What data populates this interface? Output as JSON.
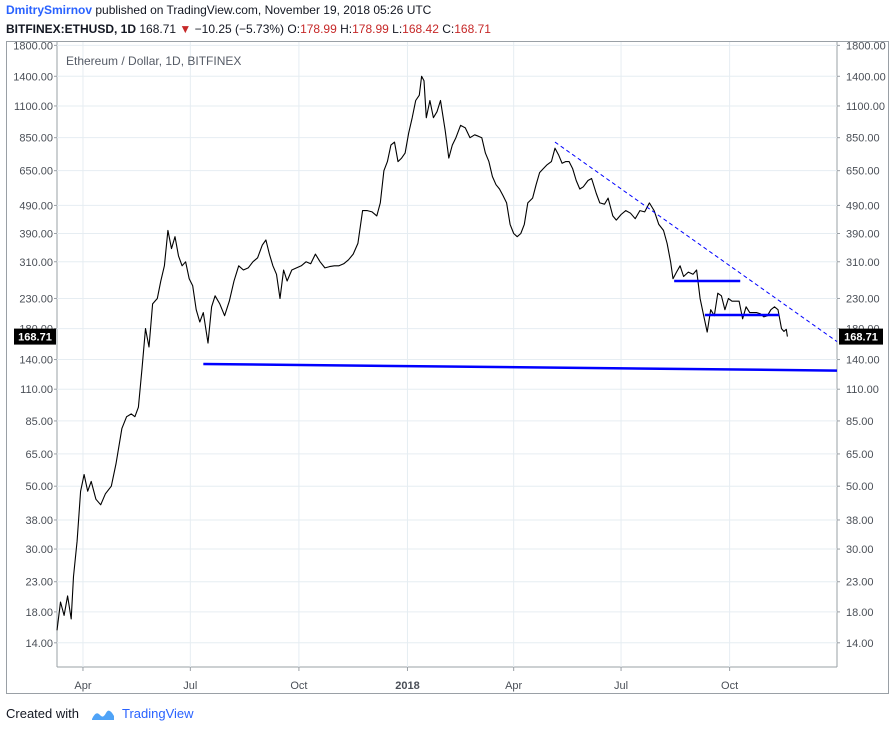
{
  "header": {
    "author": "DmitrySmirnov",
    "published_text": "published on TradingView.com, November 19, 2018 05:26 UTC",
    "symbol": "BITFINEX:ETHUSD, 1D",
    "last": "168.71",
    "change": "−10.25 (−5.73%)",
    "o_label": "O:",
    "o_value": "178.99",
    "h_label": "H:",
    "h_value": "178.99",
    "l_label": "L:",
    "l_value": "168.42",
    "c_label": "C:",
    "c_value": "168.71"
  },
  "footer": {
    "created_with": "Created with",
    "brand": "TradingView"
  },
  "colors": {
    "price_line": "#000000",
    "support_line": "#0000ff",
    "trend_line": "#0000ff",
    "price_tag_bg": "#000000",
    "grid": "#e6edf2"
  },
  "chart_data": {
    "type": "line",
    "title": "Ethereum / Dollar, 1D, BITFINEX",
    "y_scale": "log",
    "y_ticks": [
      14,
      18,
      23,
      30,
      38,
      50,
      65,
      85,
      110,
      140,
      180,
      230,
      310,
      390,
      490,
      650,
      850,
      1100,
      1400,
      1800
    ],
    "y_tick_labels": [
      "14.00",
      "18.00",
      "23.00",
      "30.00",
      "38.00",
      "50.00",
      "65.00",
      "85.00",
      "110.00",
      "140.00",
      "180.00",
      "230.00",
      "310.00",
      "390.00",
      "490.00",
      "650.00",
      "850.00",
      "1100.00",
      "1400.00",
      "1800.00"
    ],
    "ylim": [
      11.5,
      1850
    ],
    "x_range": [
      "2017-03-10",
      "2018-12-31"
    ],
    "x_ticks": [
      {
        "date": "2017-04-01",
        "label": "Apr",
        "bold": false
      },
      {
        "date": "2017-07-01",
        "label": "Jul",
        "bold": false
      },
      {
        "date": "2017-10-01",
        "label": "Oct",
        "bold": false
      },
      {
        "date": "2018-01-01",
        "label": "2018",
        "bold": true
      },
      {
        "date": "2018-04-01",
        "label": "Apr",
        "bold": false
      },
      {
        "date": "2018-07-01",
        "label": "Jul",
        "bold": false
      },
      {
        "date": "2018-10-01",
        "label": "Oct",
        "bold": false
      }
    ],
    "last_price": 168.71,
    "last_price_label": "168.71",
    "series": [
      {
        "values": [
          [
            "2017-03-10",
            15.5
          ],
          [
            "2017-03-13",
            19.5
          ],
          [
            "2017-03-16",
            17.5
          ],
          [
            "2017-03-19",
            20.5
          ],
          [
            "2017-03-22",
            17
          ],
          [
            "2017-03-24",
            24
          ],
          [
            "2017-03-27",
            32
          ],
          [
            "2017-03-30",
            48
          ],
          [
            "2017-04-02",
            55
          ],
          [
            "2017-04-05",
            48
          ],
          [
            "2017-04-08",
            52
          ],
          [
            "2017-04-12",
            45
          ],
          [
            "2017-04-16",
            43
          ],
          [
            "2017-04-20",
            47
          ],
          [
            "2017-04-25",
            50
          ],
          [
            "2017-04-29",
            60
          ],
          [
            "2017-05-04",
            80
          ],
          [
            "2017-05-08",
            88
          ],
          [
            "2017-05-12",
            90
          ],
          [
            "2017-05-15",
            88
          ],
          [
            "2017-05-18",
            95
          ],
          [
            "2017-05-21",
            130
          ],
          [
            "2017-05-24",
            180
          ],
          [
            "2017-05-27",
            155
          ],
          [
            "2017-05-30",
            220
          ],
          [
            "2017-06-03",
            230
          ],
          [
            "2017-06-06",
            265
          ],
          [
            "2017-06-09",
            300
          ],
          [
            "2017-06-12",
            400
          ],
          [
            "2017-06-15",
            345
          ],
          [
            "2017-06-18",
            380
          ],
          [
            "2017-06-21",
            325
          ],
          [
            "2017-06-24",
            300
          ],
          [
            "2017-06-27",
            310
          ],
          [
            "2017-06-30",
            270
          ],
          [
            "2017-07-03",
            255
          ],
          [
            "2017-07-06",
            210
          ],
          [
            "2017-07-09",
            190
          ],
          [
            "2017-07-12",
            205
          ],
          [
            "2017-07-16",
            160
          ],
          [
            "2017-07-19",
            215
          ],
          [
            "2017-07-22",
            235
          ],
          [
            "2017-07-26",
            220
          ],
          [
            "2017-07-30",
            200
          ],
          [
            "2017-08-03",
            225
          ],
          [
            "2017-08-07",
            265
          ],
          [
            "2017-08-11",
            300
          ],
          [
            "2017-08-15",
            290
          ],
          [
            "2017-08-19",
            295
          ],
          [
            "2017-08-23",
            310
          ],
          [
            "2017-08-27",
            320
          ],
          [
            "2017-08-31",
            355
          ],
          [
            "2017-09-03",
            370
          ],
          [
            "2017-09-06",
            330
          ],
          [
            "2017-09-09",
            300
          ],
          [
            "2017-09-12",
            280
          ],
          [
            "2017-09-15",
            230
          ],
          [
            "2017-09-18",
            290
          ],
          [
            "2017-09-21",
            265
          ],
          [
            "2017-09-25",
            290
          ],
          [
            "2017-09-29",
            295
          ],
          [
            "2017-10-03",
            300
          ],
          [
            "2017-10-07",
            310
          ],
          [
            "2017-10-11",
            305
          ],
          [
            "2017-10-15",
            330
          ],
          [
            "2017-10-19",
            310
          ],
          [
            "2017-10-23",
            295
          ],
          [
            "2017-10-27",
            298
          ],
          [
            "2017-10-31",
            300
          ],
          [
            "2017-11-04",
            300
          ],
          [
            "2017-11-08",
            305
          ],
          [
            "2017-11-12",
            315
          ],
          [
            "2017-11-16",
            330
          ],
          [
            "2017-11-20",
            360
          ],
          [
            "2017-11-24",
            470
          ],
          [
            "2017-11-28",
            470
          ],
          [
            "2017-12-02",
            465
          ],
          [
            "2017-12-06",
            450
          ],
          [
            "2017-12-09",
            500
          ],
          [
            "2017-12-12",
            650
          ],
          [
            "2017-12-15",
            700
          ],
          [
            "2017-12-18",
            800
          ],
          [
            "2017-12-21",
            820
          ],
          [
            "2017-12-24",
            700
          ],
          [
            "2017-12-27",
            720
          ],
          [
            "2017-12-30",
            750
          ],
          [
            "2018-01-02",
            880
          ],
          [
            "2018-01-05",
            1000
          ],
          [
            "2018-01-08",
            1150
          ],
          [
            "2018-01-11",
            1200
          ],
          [
            "2018-01-13",
            1400
          ],
          [
            "2018-01-15",
            1350
          ],
          [
            "2018-01-17",
            1000
          ],
          [
            "2018-01-20",
            1150
          ],
          [
            "2018-01-23",
            1000
          ],
          [
            "2018-01-26",
            1050
          ],
          [
            "2018-01-29",
            1150
          ],
          [
            "2018-02-02",
            900
          ],
          [
            "2018-02-05",
            720
          ],
          [
            "2018-02-08",
            800
          ],
          [
            "2018-02-11",
            850
          ],
          [
            "2018-02-15",
            940
          ],
          [
            "2018-02-19",
            920
          ],
          [
            "2018-02-23",
            850
          ],
          [
            "2018-02-27",
            870
          ],
          [
            "2018-03-02",
            860
          ],
          [
            "2018-03-05",
            850
          ],
          [
            "2018-03-08",
            750
          ],
          [
            "2018-03-11",
            700
          ],
          [
            "2018-03-14",
            620
          ],
          [
            "2018-03-17",
            580
          ],
          [
            "2018-03-20",
            560
          ],
          [
            "2018-03-23",
            530
          ],
          [
            "2018-03-26",
            500
          ],
          [
            "2018-03-29",
            420
          ],
          [
            "2018-04-01",
            390
          ],
          [
            "2018-04-04",
            380
          ],
          [
            "2018-04-07",
            390
          ],
          [
            "2018-04-10",
            420
          ],
          [
            "2018-04-13",
            500
          ],
          [
            "2018-04-17",
            520
          ],
          [
            "2018-04-20",
            580
          ],
          [
            "2018-04-23",
            640
          ],
          [
            "2018-04-26",
            660
          ],
          [
            "2018-04-29",
            680
          ],
          [
            "2018-05-03",
            700
          ],
          [
            "2018-05-06",
            780
          ],
          [
            "2018-05-09",
            740
          ],
          [
            "2018-05-12",
            690
          ],
          [
            "2018-05-15",
            700
          ],
          [
            "2018-05-18",
            700
          ],
          [
            "2018-05-21",
            660
          ],
          [
            "2018-05-24",
            600
          ],
          [
            "2018-05-27",
            560
          ],
          [
            "2018-05-30",
            570
          ],
          [
            "2018-06-03",
            600
          ],
          [
            "2018-06-06",
            610
          ],
          [
            "2018-06-10",
            540
          ],
          [
            "2018-06-13",
            500
          ],
          [
            "2018-06-17",
            495
          ],
          [
            "2018-06-20",
            520
          ],
          [
            "2018-06-24",
            450
          ],
          [
            "2018-06-27",
            435
          ],
          [
            "2018-07-01",
            455
          ],
          [
            "2018-07-05",
            470
          ],
          [
            "2018-07-09",
            460
          ],
          [
            "2018-07-13",
            440
          ],
          [
            "2018-07-17",
            470
          ],
          [
            "2018-07-21",
            465
          ],
          [
            "2018-07-25",
            500
          ],
          [
            "2018-07-29",
            470
          ],
          [
            "2018-08-02",
            420
          ],
          [
            "2018-08-06",
            400
          ],
          [
            "2018-08-09",
            360
          ],
          [
            "2018-08-12",
            310
          ],
          [
            "2018-08-14",
            270
          ],
          [
            "2018-08-17",
            285
          ],
          [
            "2018-08-20",
            300
          ],
          [
            "2018-08-23",
            275
          ],
          [
            "2018-08-27",
            285
          ],
          [
            "2018-08-31",
            280
          ],
          [
            "2018-09-03",
            290
          ],
          [
            "2018-09-06",
            230
          ],
          [
            "2018-09-09",
            200
          ],
          [
            "2018-09-12",
            175
          ],
          [
            "2018-09-15",
            210
          ],
          [
            "2018-09-18",
            200
          ],
          [
            "2018-09-21",
            240
          ],
          [
            "2018-09-24",
            235
          ],
          [
            "2018-09-27",
            210
          ],
          [
            "2018-09-30",
            230
          ],
          [
            "2018-10-03",
            225
          ],
          [
            "2018-10-06",
            225
          ],
          [
            "2018-10-09",
            225
          ],
          [
            "2018-10-12",
            195
          ],
          [
            "2018-10-15",
            215
          ],
          [
            "2018-10-18",
            205
          ],
          [
            "2018-10-21",
            205
          ],
          [
            "2018-10-24",
            205
          ],
          [
            "2018-10-27",
            203
          ],
          [
            "2018-10-30",
            198
          ],
          [
            "2018-11-02",
            200
          ],
          [
            "2018-11-05",
            210
          ],
          [
            "2018-11-08",
            215
          ],
          [
            "2018-11-11",
            210
          ],
          [
            "2018-11-14",
            180
          ],
          [
            "2018-11-16",
            176
          ],
          [
            "2018-11-18",
            178.99
          ],
          [
            "2018-11-19",
            168.71
          ]
        ]
      }
    ],
    "drawings": [
      {
        "type": "support",
        "style": "solid",
        "from": [
          "2017-07-12",
          135
        ],
        "to": [
          "2018-12-31",
          128
        ]
      },
      {
        "type": "range-top",
        "style": "solid",
        "from": [
          "2018-08-15",
          265
        ],
        "to": [
          "2018-10-10",
          265
        ]
      },
      {
        "type": "range-bottom",
        "style": "solid",
        "from": [
          "2018-09-10",
          201
        ],
        "to": [
          "2018-11-12",
          201
        ]
      },
      {
        "type": "trendline",
        "style": "dashed",
        "from": [
          "2018-05-06",
          820
        ],
        "to": [
          "2018-12-31",
          162
        ]
      }
    ]
  }
}
